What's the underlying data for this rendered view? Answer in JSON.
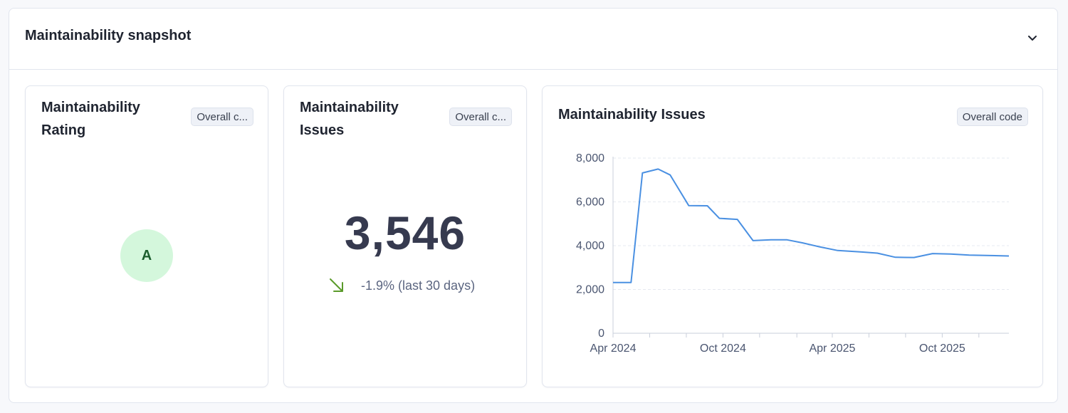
{
  "panel": {
    "title": "Maintainability snapshot",
    "collapse_icon": "chevron-down-icon"
  },
  "cards": {
    "rating": {
      "title_line1": "Maintainability",
      "title_line2": "Rating",
      "tag": "Overall c...",
      "value": "A"
    },
    "issues": {
      "title_line1": "Maintainability",
      "title_line2": "Issues",
      "tag": "Overall c...",
      "value": "3,546",
      "trend": "-1.9% (last 30 days)",
      "trend_icon": "arrow-down-right-icon"
    },
    "chart": {
      "title": "Maintainability Issues",
      "tag": "Overall code"
    }
  },
  "colors": {
    "accent_line": "#4a90e2",
    "rating_bg": "#d4f7dc",
    "rating_text": "#1b5e2d",
    "trend_arrow": "#5a9a2a"
  },
  "chart_data": {
    "type": "line",
    "title": "",
    "xlabel": "",
    "ylabel": "",
    "ylim": [
      0,
      8000
    ],
    "yticks": [
      0,
      2000,
      4000,
      6000,
      8000
    ],
    "ytick_labels": [
      "0",
      "2,000",
      "4,000",
      "6,000",
      "8,000"
    ],
    "xlim": [
      "2024-04-01",
      "2026-01-20"
    ],
    "xticks": [
      "2024-04-01",
      "2024-10-01",
      "2025-04-01",
      "2025-10-01"
    ],
    "xtick_labels": [
      "Apr 2024",
      "Oct 2024",
      "Apr 2025",
      "Oct 2025"
    ],
    "minor_xticks": [
      "2024-04-01",
      "2024-06-01",
      "2024-08-01",
      "2024-10-01",
      "2024-12-01",
      "2025-02-01",
      "2025-04-01",
      "2025-06-01",
      "2025-08-01",
      "2025-10-01",
      "2025-12-01"
    ],
    "grid": true,
    "series": [
      {
        "x": [
          "2024-04-01",
          "2024-05-01",
          "2024-05-20",
          "2024-06-15",
          "2024-07-05",
          "2024-08-05",
          "2024-09-05",
          "2024-09-25",
          "2024-10-25",
          "2024-11-20",
          "2024-12-20",
          "2025-01-15",
          "2025-02-10",
          "2025-03-10",
          "2025-04-10",
          "2025-05-20",
          "2025-06-15",
          "2025-07-15",
          "2025-08-15",
          "2025-09-15",
          "2025-10-15",
          "2025-11-15",
          "2026-01-20"
        ],
        "y": [
          2320,
          2320,
          7320,
          7500,
          7230,
          5830,
          5820,
          5250,
          5200,
          4230,
          4270,
          4270,
          4130,
          3950,
          3780,
          3710,
          3660,
          3470,
          3460,
          3640,
          3620,
          3570,
          3530
        ]
      }
    ]
  }
}
